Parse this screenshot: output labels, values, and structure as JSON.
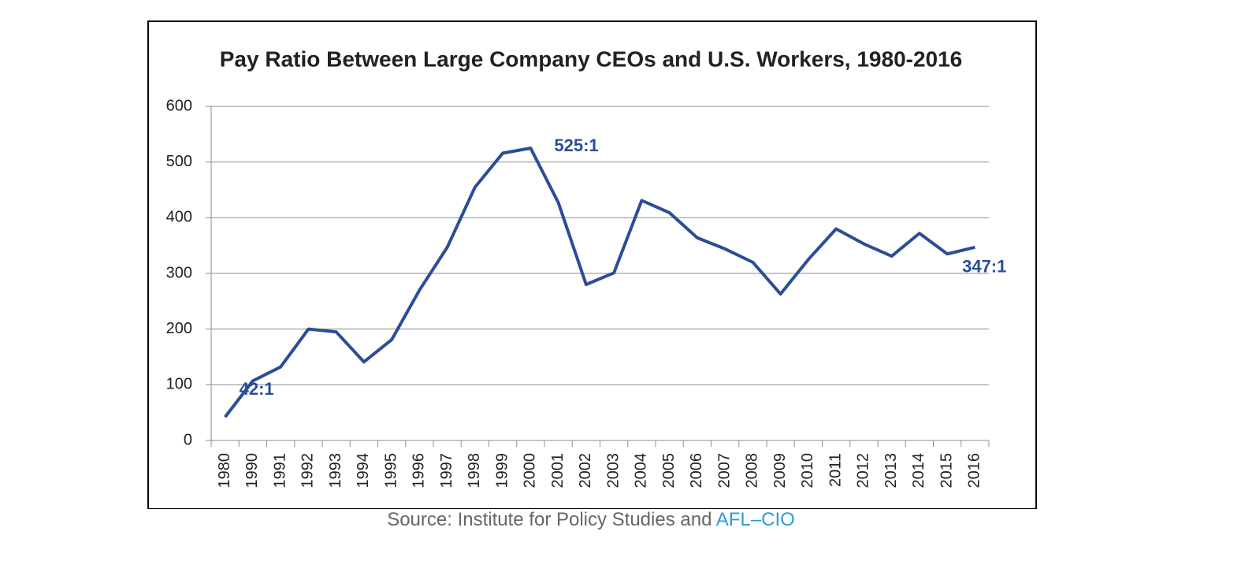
{
  "chart_data": {
    "type": "line",
    "title": "Pay Ratio Between Large Company CEOs and U.S. Workers, 1980-2016",
    "categories": [
      "1980",
      "1990",
      "1991",
      "1992",
      "1993",
      "1994",
      "1995",
      "1996",
      "1997",
      "1998",
      "1999",
      "2000",
      "2001",
      "2002",
      "2003",
      "2004",
      "2005",
      "2006",
      "2007",
      "2008",
      "2009",
      "2010",
      "2011",
      "2012",
      "2013",
      "2014",
      "2015",
      "2016"
    ],
    "values": [
      42,
      107,
      132,
      200,
      195,
      141,
      181,
      270,
      347,
      455,
      516,
      525,
      427,
      280,
      301,
      431,
      409,
      364,
      344,
      320,
      263,
      325,
      380,
      353,
      331,
      372,
      335,
      347
    ],
    "value_labels": [
      "42:1",
      null,
      null,
      null,
      null,
      null,
      null,
      null,
      null,
      null,
      null,
      "525:1",
      null,
      null,
      null,
      null,
      null,
      null,
      null,
      null,
      null,
      null,
      null,
      null,
      null,
      null,
      null,
      "347:1"
    ],
    "color": "#2a4e96",
    "ylim": [
      0,
      600
    ],
    "yticks": [
      0,
      100,
      200,
      300,
      400,
      500,
      600
    ],
    "grid": true
  },
  "source": {
    "text": "Source: Institute for Policy Studies and",
    "link": "AFL–CIO"
  }
}
